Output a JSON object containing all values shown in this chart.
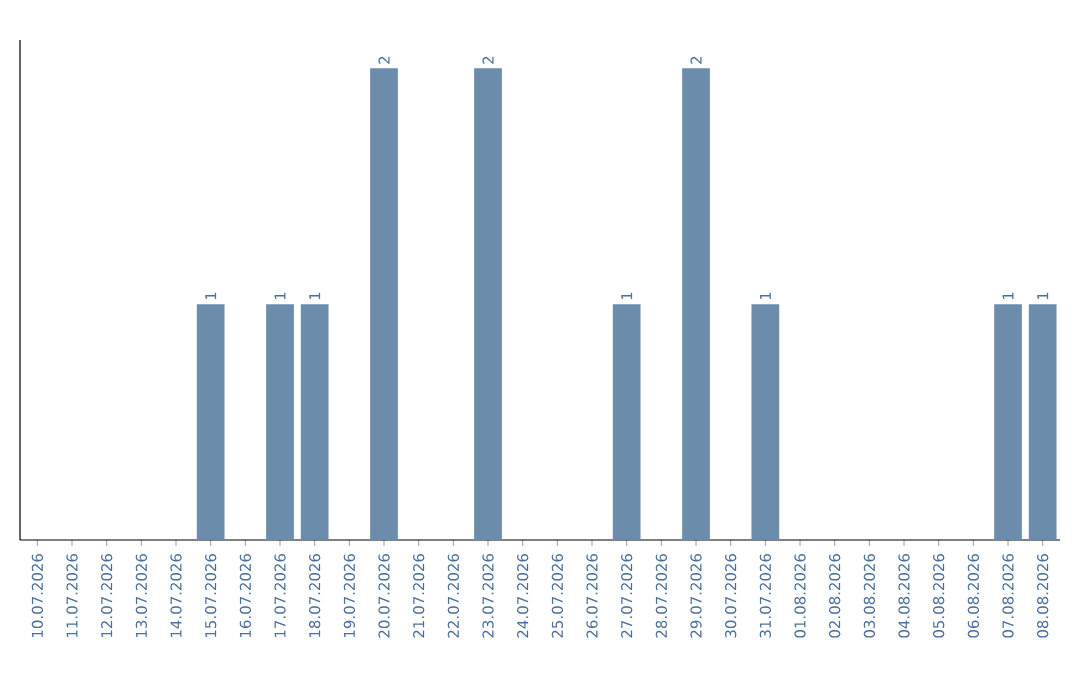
{
  "chart_data": {
    "type": "bar",
    "categories": [
      "10.07.2026",
      "11.07.2026",
      "12.07.2026",
      "13.07.2026",
      "14.07.2026",
      "15.07.2026",
      "16.07.2026",
      "17.07.2026",
      "18.07.2026",
      "19.07.2026",
      "20.07.2026",
      "21.07.2026",
      "22.07.2026",
      "23.07.2026",
      "24.07.2026",
      "25.07.2026",
      "26.07.2026",
      "27.07.2026",
      "28.07.2026",
      "29.07.2026",
      "30.07.2026",
      "31.07.2026",
      "01.08.2026",
      "02.08.2026",
      "03.08.2026",
      "04.08.2026",
      "05.08.2026",
      "06.08.2026",
      "07.08.2026",
      "08.08.2026"
    ],
    "values": [
      0,
      0,
      0,
      0,
      0,
      1,
      0,
      1,
      1,
      0,
      2,
      0,
      0,
      2,
      0,
      0,
      0,
      1,
      0,
      2,
      0,
      1,
      0,
      0,
      0,
      0,
      0,
      0,
      1,
      1
    ],
    "value_labels": [
      null,
      null,
      null,
      null,
      null,
      "1",
      null,
      "1",
      "1",
      null,
      "2",
      null,
      null,
      "2",
      null,
      null,
      null,
      "1",
      null,
      "2",
      null,
      "1",
      null,
      null,
      null,
      null,
      null,
      null,
      "1",
      "1"
    ],
    "color": "#6b8cab",
    "ylim": [
      0,
      2
    ],
    "tick_labels": "x"
  }
}
